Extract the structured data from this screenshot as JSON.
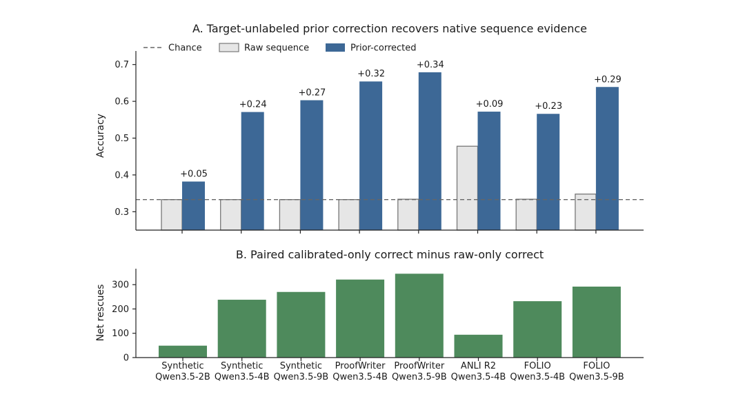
{
  "chart_data": [
    {
      "type": "bar",
      "title": "A. Target-unlabeled prior correction recovers native sequence evidence",
      "xlabel": "",
      "ylabel": "Accuracy",
      "ylim": [
        0.25,
        0.72
      ],
      "yticks": [
        "0.3",
        "0.4",
        "0.5",
        "0.6",
        "0.7"
      ],
      "grid": false,
      "legend_position": "top",
      "reference_line": {
        "name": "Chance",
        "value": 0.333
      },
      "categories": [
        "Synthetic Qwen3.5-2B",
        "Synthetic Qwen3.5-4B",
        "Synthetic Qwen3.5-9B",
        "ProofWriter Qwen3.5-4B",
        "ProofWriter Qwen3.5-9B",
        "ANLI R2 Qwen3.5-4B",
        "FOLIO Qwen3.5-4B",
        "FOLIO Qwen3.5-9B"
      ],
      "series": [
        {
          "name": "Raw sequence",
          "color": "#e6e6e6",
          "values": [
            0.333,
            0.333,
            0.333,
            0.333,
            0.334,
            0.478,
            0.334,
            0.348
          ]
        },
        {
          "name": "Prior-corrected",
          "color": "#3d6896",
          "values": [
            0.382,
            0.571,
            0.603,
            0.654,
            0.679,
            0.572,
            0.566,
            0.639
          ]
        }
      ],
      "annotations": [
        "+0.05",
        "+0.24",
        "+0.27",
        "+0.32",
        "+0.34",
        "+0.09",
        "+0.23",
        "+0.29"
      ]
    },
    {
      "type": "bar",
      "title": "B. Paired calibrated-only correct minus raw-only correct",
      "xlabel": "",
      "ylabel": "Net rescues",
      "ylim": [
        0,
        360
      ],
      "yticks": [
        "0",
        "100",
        "200",
        "300"
      ],
      "grid": false,
      "categories": [
        "Synthetic Qwen3.5-2B",
        "Synthetic Qwen3.5-4B",
        "Synthetic Qwen3.5-9B",
        "ProofWriter Qwen3.5-4B",
        "ProofWriter Qwen3.5-9B",
        "ANLI R2 Qwen3.5-4B",
        "FOLIO Qwen3.5-4B",
        "FOLIO Qwen3.5-9B"
      ],
      "category_lines": [
        [
          "Synthetic",
          "Qwen3.5-2B"
        ],
        [
          "Synthetic",
          "Qwen3.5-4B"
        ],
        [
          "Synthetic",
          "Qwen3.5-9B"
        ],
        [
          "ProofWriter",
          "Qwen3.5-4B"
        ],
        [
          "ProofWriter",
          "Qwen3.5-9B"
        ],
        [
          "ANLI R2",
          "Qwen3.5-4B"
        ],
        [
          "FOLIO",
          "Qwen3.5-4B"
        ],
        [
          "FOLIO",
          "Qwen3.5-9B"
        ]
      ],
      "color": "#4e8a5c",
      "values": [
        49,
        238,
        270,
        321,
        345,
        94,
        232,
        292
      ]
    }
  ]
}
